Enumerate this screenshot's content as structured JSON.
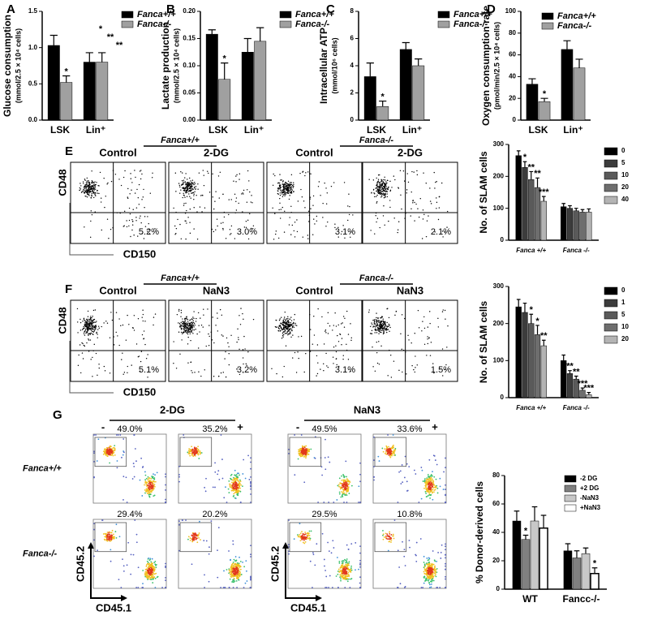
{
  "panel_labels": [
    "A",
    "B",
    "C",
    "D",
    "E",
    "F",
    "G"
  ],
  "chart_data": [
    {
      "type": "bar",
      "ylabel": "Glucose consumption",
      "ylabel_unit": "(mmol/2.5 × 10⁴ cells)",
      "categories": [
        "LSK",
        "Lin⁺"
      ],
      "series": [
        {
          "name": "Fanca+/+",
          "color": "#000000",
          "values": [
            1.03,
            0.8
          ],
          "errors": [
            0.14,
            0.13
          ]
        },
        {
          "name": "Fanca-/-",
          "color": "#a0a0a0",
          "values": [
            0.52,
            0.8
          ],
          "errors": [
            0.09,
            0.13
          ]
        }
      ],
      "ylim": [
        0,
        1.5
      ],
      "yticks": [
        {
          "value": 0,
          "label": "0.0"
        },
        {
          "value": 0.5,
          "label": "0.5"
        },
        {
          "value": 1,
          "label": "1.0"
        },
        {
          "value": 1.5,
          "label": "1.5"
        }
      ],
      "annotations": [
        {
          "text": "*",
          "series": 1,
          "index": 0
        }
      ],
      "extra_annotations": [
        "*",
        "**",
        "**"
      ]
    },
    {
      "type": "bar",
      "ylabel": "Lactate production",
      "ylabel_unit": "(mmol/2.5 × 10⁴ cells)",
      "categories": [
        "LSK",
        "Lin⁺"
      ],
      "series": [
        {
          "name": "Fanca+/+",
          "color": "#000000",
          "values": [
            0.158,
            0.125
          ],
          "errors": [
            0.008,
            0.025
          ]
        },
        {
          "name": "Fanca-/-",
          "color": "#a0a0a0",
          "values": [
            0.075,
            0.145
          ],
          "errors": [
            0.03,
            0.025
          ]
        }
      ],
      "ylim": [
        0,
        0.2
      ],
      "yticks": [
        {
          "value": 0,
          "label": "0.00"
        },
        {
          "value": 0.05,
          "label": "0.05"
        },
        {
          "value": 0.1,
          "label": "0.10"
        },
        {
          "value": 0.15,
          "label": "0.15"
        },
        {
          "value": 0.2,
          "label": "0.20"
        }
      ],
      "annotations": [
        {
          "text": "*",
          "series": 1,
          "index": 0
        }
      ]
    },
    {
      "type": "bar",
      "ylabel": "Intracellular ATP",
      "ylabel_unit": "(mmol/10⁶ cells)",
      "categories": [
        "LSK",
        "Lin⁺"
      ],
      "series": [
        {
          "name": "Fanca+/+",
          "color": "#000000",
          "values": [
            3.2,
            5.2
          ],
          "errors": [
            1.0,
            0.5
          ]
        },
        {
          "name": "Fanca-/-",
          "color": "#a0a0a0",
          "values": [
            1.0,
            4.0
          ],
          "errors": [
            0.4,
            0.5
          ]
        }
      ],
      "ylim": [
        0,
        8
      ],
      "yticks": [
        0,
        2,
        4,
        6,
        8
      ],
      "annotations": [
        {
          "text": "*",
          "series": 1,
          "index": 0
        }
      ]
    },
    {
      "type": "bar",
      "ylabel": "Oxygen consumption rate",
      "ylabel_unit": "(pmol/min/2.5 × 10⁴ cells)",
      "categories": [
        "LSK",
        "Lin⁺"
      ],
      "series": [
        {
          "name": "Fanca+/+",
          "color": "#000000",
          "values": [
            33,
            65
          ],
          "errors": [
            5,
            8
          ]
        },
        {
          "name": "Fanca-/-",
          "color": "#a0a0a0",
          "values": [
            17,
            48
          ],
          "errors": [
            3,
            8
          ]
        }
      ],
      "ylim": [
        0,
        100
      ],
      "yticks": [
        0,
        20,
        40,
        60,
        80,
        100
      ],
      "annotations": [
        {
          "text": "*",
          "series": 1,
          "index": 0
        }
      ]
    },
    {
      "type": "bar",
      "ylabel": "No. of SLAM cells",
      "categories": [
        "Fanca +/+",
        "Fanca -/-"
      ],
      "series": [
        {
          "name": "0",
          "color": "#000000",
          "values": [
            265,
            105
          ],
          "errors": [
            15,
            10
          ]
        },
        {
          "name": "5",
          "color": "#3c3c3c",
          "values": [
            228,
            100
          ],
          "errors": [
            18,
            8
          ]
        },
        {
          "name": "10",
          "color": "#5a5a5a",
          "values": [
            190,
            92
          ],
          "errors": [
            25,
            8
          ]
        },
        {
          "name": "20",
          "color": "#6e6e6e",
          "values": [
            165,
            88
          ],
          "errors": [
            30,
            8
          ]
        },
        {
          "name": "40",
          "color": "#b4b4b4",
          "values": [
            122,
            88
          ],
          "errors": [
            15,
            10
          ]
        }
      ],
      "ylim": [
        0,
        300
      ],
      "yticks": [
        0,
        100,
        200,
        300
      ],
      "annotations": [
        {
          "text": "*",
          "series": 1,
          "index": 0
        },
        {
          "text": "**",
          "series": 2,
          "index": 0
        },
        {
          "text": "**",
          "series": 3,
          "index": 0
        },
        {
          "text": "***",
          "series": 4,
          "index": 0
        }
      ]
    },
    {
      "type": "bar",
      "ylabel": "No. of SLAM cells",
      "categories": [
        "Fanca +/+",
        "Fanca -/-"
      ],
      "series": [
        {
          "name": "0",
          "color": "#000000",
          "values": [
            245,
            100
          ],
          "errors": [
            20,
            15
          ]
        },
        {
          "name": "1",
          "color": "#3c3c3c",
          "values": [
            230,
            65
          ],
          "errors": [
            25,
            8
          ]
        },
        {
          "name": "5",
          "color": "#5a5a5a",
          "values": [
            200,
            50
          ],
          "errors": [
            25,
            8
          ]
        },
        {
          "name": "10",
          "color": "#6e6e6e",
          "values": [
            170,
            20
          ],
          "errors": [
            25,
            6
          ]
        },
        {
          "name": "20",
          "color": "#b4b4b4",
          "values": [
            140,
            8
          ],
          "errors": [
            15,
            6
          ]
        }
      ],
      "ylim": [
        0,
        300
      ],
      "yticks": [
        0,
        100,
        200,
        300
      ],
      "annotations": [
        {
          "text": "*",
          "series": 2,
          "index": 0
        },
        {
          "text": "*",
          "series": 3,
          "index": 0
        },
        {
          "text": "**",
          "series": 4,
          "index": 0
        },
        {
          "text": "**",
          "series": 1,
          "index": 1
        },
        {
          "text": "**",
          "series": 2,
          "index": 1
        },
        {
          "text": "***",
          "series": 3,
          "index": 1
        },
        {
          "text": "***",
          "series": 4,
          "index": 1
        }
      ]
    },
    {
      "type": "bar",
      "ylabel": "% Donor-derived cells",
      "categories": [
        "WT",
        "Fancc-/-"
      ],
      "series": [
        {
          "name": "-2 DG",
          "color": "#000000",
          "values": [
            48,
            27
          ],
          "errors": [
            7,
            5
          ]
        },
        {
          "name": "+2 DG",
          "color": "#808080",
          "values": [
            35,
            22
          ],
          "errors": [
            3,
            5
          ]
        },
        {
          "name": "-NaN3",
          "color": "#c8c8c8",
          "values": [
            48,
            25
          ],
          "errors": [
            10,
            4
          ]
        },
        {
          "name": "+NaN3",
          "color": "#ffffff",
          "values": [
            43,
            11
          ],
          "errors": [
            9,
            4
          ]
        }
      ],
      "ylim": [
        0,
        80
      ],
      "yticks": [
        0,
        20,
        40,
        60,
        80
      ],
      "annotations": [
        {
          "text": "*",
          "series": 1,
          "index": 0
        },
        {
          "text": "*",
          "series": 3,
          "index": 1
        }
      ]
    }
  ],
  "flow_e": {
    "groups": [
      "Fanca+/+",
      "Fanca-/-"
    ],
    "xlabel": "CD150",
    "ylabel": "CD48",
    "panels": [
      {
        "title": "Control",
        "percent": "5.2%"
      },
      {
        "title": "2-DG",
        "percent": "3.0%"
      },
      {
        "title": "Control",
        "percent": "3.1%"
      },
      {
        "title": "2-DG",
        "percent": "2.1%"
      }
    ]
  },
  "flow_f": {
    "groups": [
      "Fanca+/+",
      "Fanca-/-"
    ],
    "xlabel": "CD150",
    "ylabel": "CD48",
    "panels": [
      {
        "title": "Control",
        "percent": "5.1%"
      },
      {
        "title": "NaN3",
        "percent": "3.2%"
      },
      {
        "title": "Control",
        "percent": "3.1%"
      },
      {
        "title": "NaN3",
        "percent": "1.5%"
      }
    ]
  },
  "flow_g": {
    "treatments": [
      "2-DG",
      "NaN3"
    ],
    "signs": [
      "-",
      "+"
    ],
    "xlabel": "CD45.1",
    "ylabel": "CD45.2",
    "rows": [
      {
        "label": "Fanca+/+",
        "percents": [
          "49.0%",
          "35.2%",
          "49.5%",
          "33.6%"
        ]
      },
      {
        "label": "Fanca-/-",
        "percents": [
          "29.4%",
          "20.2%",
          "29.5%",
          "10.8%"
        ]
      }
    ]
  }
}
